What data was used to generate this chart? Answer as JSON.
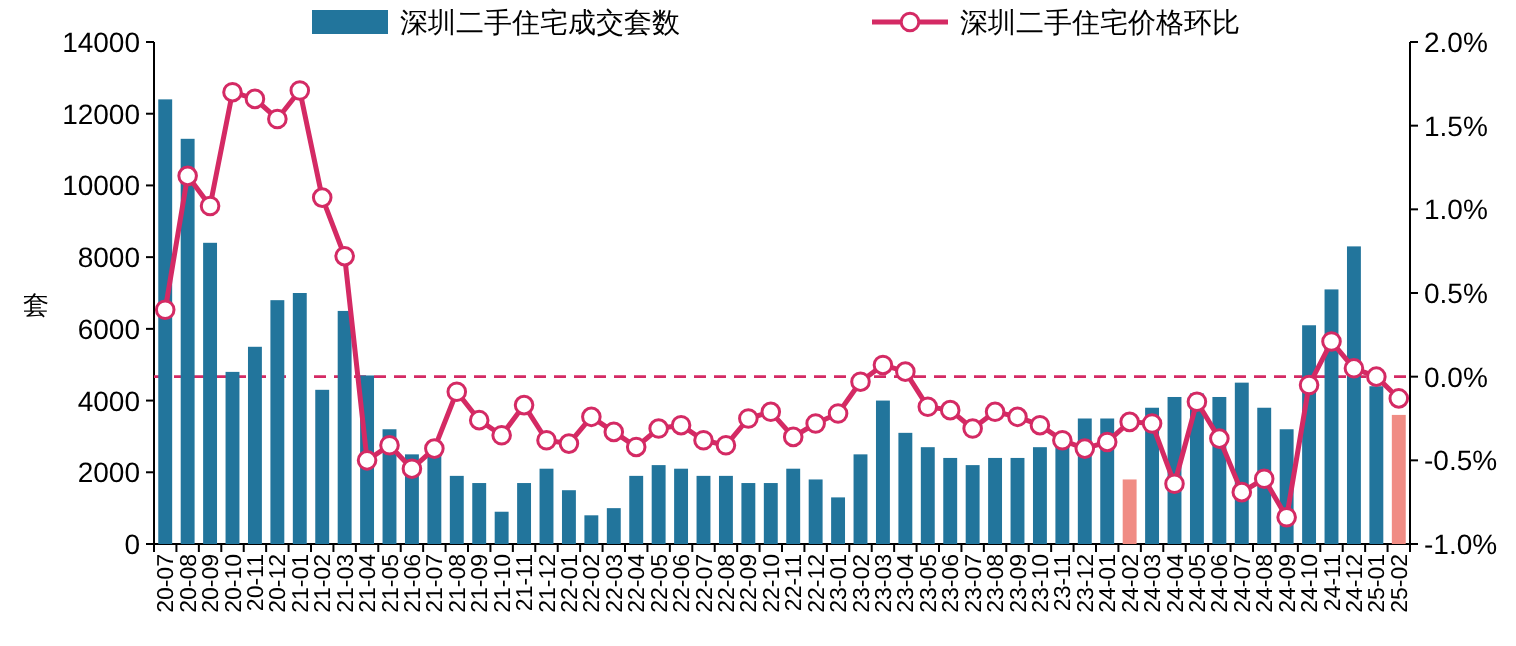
{
  "chart_data": {
    "type": "bar",
    "ylabel": "套",
    "legend": "top",
    "categories": [
      "20-07",
      "20-08",
      "20-09",
      "20-10",
      "20-11",
      "20-12",
      "21-01",
      "21-02",
      "21-03",
      "21-04",
      "21-05",
      "21-06",
      "21-07",
      "21-08",
      "21-09",
      "21-10",
      "21-11",
      "21-12",
      "22-01",
      "22-02",
      "22-03",
      "22-04",
      "22-05",
      "22-06",
      "22-07",
      "22-08",
      "22-09",
      "22-10",
      "22-11",
      "22-12",
      "23-01",
      "23-02",
      "23-03",
      "23-04",
      "23-05",
      "23-06",
      "23-07",
      "23-08",
      "23-09",
      "23-10",
      "23-11",
      "23-12",
      "24-01",
      "24-02",
      "24-03",
      "24-04",
      "24-05",
      "24-06",
      "24-07",
      "24-08",
      "24-09",
      "24-10",
      "24-11",
      "24-12",
      "25-01",
      "25-02"
    ],
    "series": [
      {
        "name": "深圳二手住宅成交套数",
        "color": "#22759c",
        "colors": [
          "#22759c",
          "#22759c",
          "#22759c",
          "#22759c",
          "#22759c",
          "#22759c",
          "#22759c",
          "#22759c",
          "#22759c",
          "#22759c",
          "#22759c",
          "#22759c",
          "#22759c",
          "#22759c",
          "#22759c",
          "#22759c",
          "#22759c",
          "#22759c",
          "#22759c",
          "#22759c",
          "#22759c",
          "#22759c",
          "#22759c",
          "#22759c",
          "#22759c",
          "#22759c",
          "#22759c",
          "#22759c",
          "#22759c",
          "#22759c",
          "#22759c",
          "#22759c",
          "#22759c",
          "#22759c",
          "#22759c",
          "#22759c",
          "#22759c",
          "#22759c",
          "#22759c",
          "#22759c",
          "#22759c",
          "#22759c",
          "#22759c",
          "#f08c84",
          "#22759c",
          "#22759c",
          "#22759c",
          "#22759c",
          "#22759c",
          "#22759c",
          "#22759c",
          "#22759c",
          "#22759c",
          "#22759c",
          "#22759c",
          "#f08c84"
        ],
        "values": [
          12400,
          11300,
          8400,
          4800,
          5500,
          6800,
          7000,
          4300,
          6500,
          4700,
          3200,
          2500,
          2500,
          1900,
          1700,
          900,
          1700,
          2100,
          1500,
          800,
          1000,
          1900,
          2200,
          2100,
          1900,
          1900,
          1700,
          1700,
          2100,
          1800,
          1300,
          2500,
          4000,
          3100,
          2700,
          2400,
          2200,
          2400,
          2400,
          2700,
          2800,
          3500,
          3500,
          1800,
          3800,
          4100,
          4200,
          4100,
          4500,
          3800,
          3200,
          6100,
          7100,
          8300,
          4400,
          3600
        ]
      },
      {
        "name": "深圳二手住宅价格环比",
        "type": "line",
        "axis": "y2",
        "color": "#d42a64",
        "marker": "circle",
        "line_style": "solid",
        "values": [
          0.4,
          1.2,
          1.02,
          1.7,
          1.66,
          1.54,
          1.71,
          1.07,
          0.72,
          -0.5,
          -0.41,
          -0.55,
          -0.43,
          -0.09,
          -0.26,
          -0.35,
          -0.17,
          -0.38,
          -0.4,
          -0.24,
          -0.33,
          -0.42,
          -0.31,
          -0.29,
          -0.38,
          -0.41,
          -0.25,
          -0.21,
          -0.36,
          -0.28,
          -0.22,
          -0.03,
          0.07,
          0.03,
          -0.18,
          -0.2,
          -0.31,
          -0.21,
          -0.24,
          -0.29,
          -0.38,
          -0.43,
          -0.39,
          -0.27,
          -0.28,
          -0.64,
          -0.15,
          -0.37,
          -0.69,
          -0.61,
          -0.84,
          -0.05,
          0.21,
          0.05,
          0.0,
          -0.13
        ]
      }
    ],
    "ylim": [
      0,
      14000
    ],
    "yticks": [
      0,
      2000,
      4000,
      6000,
      8000,
      10000,
      12000,
      14000
    ],
    "y2lim": [
      -1.0,
      2.0
    ],
    "y2ticks": [
      {
        "value": -1.0,
        "label": "-1.0%"
      },
      {
        "value": -0.5,
        "label": "-0.5%"
      },
      {
        "value": 0.0,
        "label": "0.0%"
      },
      {
        "value": 0.5,
        "label": "0.5%"
      },
      {
        "value": 1.0,
        "label": "1.0%"
      },
      {
        "value": 1.5,
        "label": "1.5%"
      },
      {
        "value": 2.0,
        "label": "2.0%"
      }
    ],
    "ref_lines": [
      {
        "axis": "y2",
        "value": 0,
        "color": "#d42a64",
        "line_style": "dashed"
      }
    ]
  }
}
